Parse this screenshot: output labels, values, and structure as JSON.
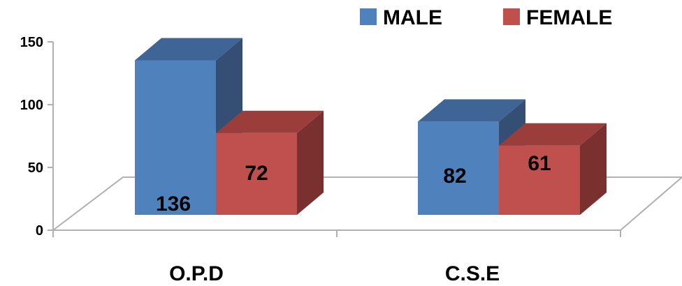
{
  "chart_data": {
    "type": "bar",
    "categories": [
      "O.P.D",
      "C.S.E"
    ],
    "series": [
      {
        "name": "MALE",
        "values": [
          136,
          82
        ],
        "color": "#4F81BD",
        "side_color": "#344F73",
        "top_color": "#3E6596"
      },
      {
        "name": "FEMALE",
        "values": [
          72,
          61
        ],
        "color": "#C0504D",
        "side_color": "#7A302E",
        "top_color": "#9B3E3B"
      }
    ],
    "y_ticks": [
      "0",
      "50",
      "100",
      "150"
    ],
    "ylim": [
      0,
      150
    ],
    "title": "",
    "xlabel": "",
    "ylabel": "",
    "legend_position": "top-right",
    "grid": false,
    "style": "3d-clustered-column"
  }
}
